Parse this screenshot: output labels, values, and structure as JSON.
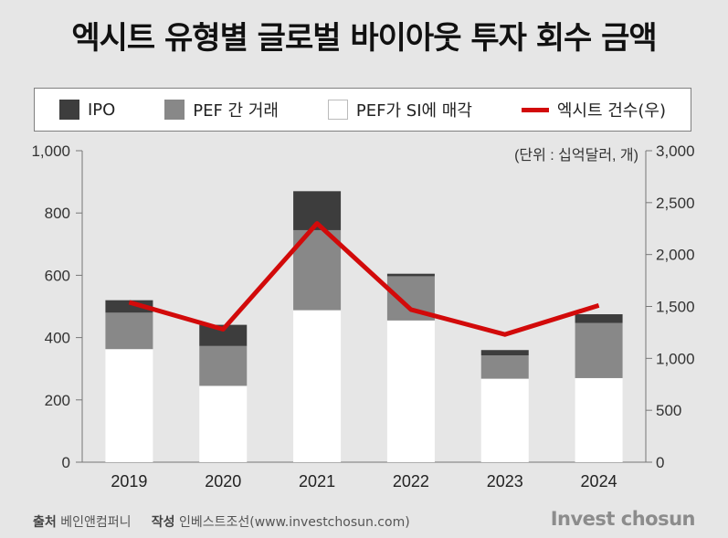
{
  "title": "엑시트 유형별 글로벌 바이아웃 투자 회수 금액",
  "legend": [
    {
      "label": "IPO",
      "color": "#3d3d3d",
      "kind": "box"
    },
    {
      "label": "PEF 간 거래",
      "color": "#888888",
      "kind": "box"
    },
    {
      "label": "PEF가 SI에 매각",
      "color": "#ffffff",
      "kind": "box"
    },
    {
      "label": "엑시트 건수(우)",
      "color": "#d20a0a",
      "kind": "line"
    }
  ],
  "unit_note": "(단위 : 십억달러, 개)",
  "footer": {
    "source_label": "출처",
    "source": "베인앤컴퍼니",
    "author_label": "작성",
    "author": "인베스트조선(www.investchosun.com)",
    "brand": "Invest chosun"
  },
  "chart_data": {
    "type": "bar",
    "stacked": true,
    "categories": [
      "2019",
      "2020",
      "2021",
      "2022",
      "2023",
      "2024"
    ],
    "series": [
      {
        "name": "PEF가 SI에 매각",
        "values": [
          363,
          245,
          488,
          455,
          268,
          270
        ],
        "color": "#ffffff"
      },
      {
        "name": "PEF 간 거래",
        "values": [
          117,
          128,
          257,
          142,
          75,
          177
        ],
        "color": "#888888"
      },
      {
        "name": "IPO",
        "values": [
          40,
          68,
          125,
          8,
          17,
          28
        ],
        "color": "#3d3d3d"
      }
    ],
    "line_series": {
      "name": "엑시트 건수(우)",
      "values": [
        1540,
        1280,
        2300,
        1470,
        1230,
        1510
      ],
      "color": "#d20a0a",
      "axis": "right"
    },
    "ylim": [
      0,
      1000
    ],
    "yticks": [
      0,
      200,
      400,
      600,
      800,
      1000
    ],
    "ytick_labels": [
      "0",
      "200",
      "400",
      "600",
      "800",
      "1,000"
    ],
    "y2lim": [
      0,
      3000
    ],
    "y2ticks": [
      0,
      500,
      1000,
      1500,
      2000,
      2500,
      3000
    ],
    "y2tick_labels": [
      "0",
      "500",
      "1,000",
      "1,500",
      "2,000",
      "2,500",
      "3,000"
    ],
    "grid": false,
    "legend_position": "top"
  }
}
